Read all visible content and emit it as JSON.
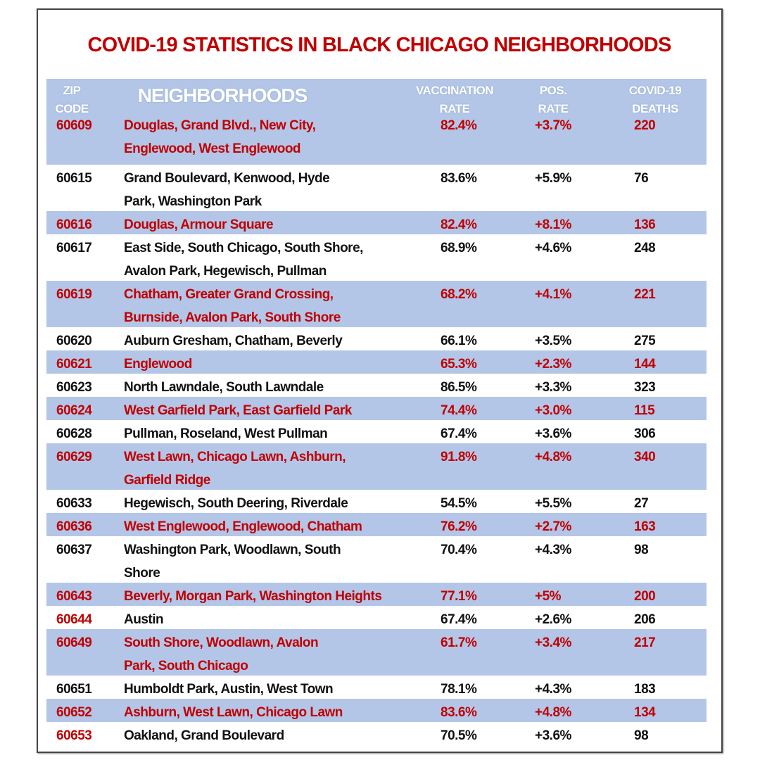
{
  "title": "COVID-19 STATISTICS IN BLACK CHICAGO NEIGHBORHOODS",
  "colors": {
    "title": "#c00000",
    "highlight": "#b4c6e7",
    "red_text": "#c00000"
  },
  "headers": {
    "zip": [
      "ZIP",
      "CODE"
    ],
    "neighborhoods": "NEIGHBORHOODS",
    "vaccination": [
      "VACCINATION",
      "RATE"
    ],
    "pos": [
      "POS.",
      "RATE"
    ],
    "deaths": [
      "COVID-19",
      "DEATHS"
    ]
  },
  "rows": [
    {
      "zip": "60609",
      "lines": [
        "Douglas, Grand Blvd., New City,",
        "Englewood, West Englewood"
      ],
      "vac": "82.4%",
      "pos": "+3.7%",
      "deaths": "220",
      "hl": true,
      "zip_red": true
    },
    {
      "zip": "60615",
      "lines": [
        "Grand Boulevard, Kenwood, Hyde",
        "Park, Washington Park"
      ],
      "vac": "83.6%",
      "pos": "+5.9%",
      "deaths": "76",
      "hl": false,
      "zip_red": false
    },
    {
      "zip": "60616",
      "lines": [
        "Douglas, Armour Square"
      ],
      "vac": "82.4%",
      "pos": "+8.1%",
      "deaths": "136",
      "hl": true,
      "zip_red": true
    },
    {
      "zip": "60617",
      "lines": [
        "East Side, South Chicago, South Shore,",
        "Avalon Park, Hegewisch, Pullman"
      ],
      "vac": "68.9%",
      "pos": "+4.6%",
      "deaths": "248",
      "hl": false,
      "zip_red": false
    },
    {
      "zip": "60619",
      "lines": [
        "Chatham, Greater Grand Crossing,",
        "Burnside, Avalon Park, South Shore"
      ],
      "vac": "68.2%",
      "pos": "+4.1%",
      "deaths": "221",
      "hl": true,
      "zip_red": true
    },
    {
      "zip": "60620",
      "lines": [
        "Auburn Gresham, Chatham, Beverly"
      ],
      "vac": "66.1%",
      "pos": "+3.5%",
      "deaths": "275",
      "hl": false,
      "zip_red": false
    },
    {
      "zip": "60621",
      "lines": [
        "Englewood"
      ],
      "vac": "65.3%",
      "pos": "+2.3%",
      "deaths": "144",
      "hl": true,
      "zip_red": true
    },
    {
      "zip": "60623",
      "lines": [
        "North Lawndale, South Lawndale"
      ],
      "vac": "86.5%",
      "pos": "+3.3%",
      "deaths": "323",
      "hl": false,
      "zip_red": false
    },
    {
      "zip": "60624",
      "lines": [
        "West Garfield Park, East Garfield Park"
      ],
      "vac": "74.4%",
      "pos": "+3.0%",
      "deaths": "115",
      "hl": true,
      "zip_red": true
    },
    {
      "zip": "60628",
      "lines": [
        "Pullman, Roseland, West Pullman"
      ],
      "vac": "67.4%",
      "pos": "+3.6%",
      "deaths": "306",
      "hl": false,
      "zip_red": false
    },
    {
      "zip": "60629",
      "lines": [
        "West Lawn, Chicago Lawn, Ashburn,",
        "Garfield Ridge"
      ],
      "vac": "91.8%",
      "pos": "+4.8%",
      "deaths": "340",
      "hl": true,
      "zip_red": true
    },
    {
      "zip": "60633",
      "lines": [
        "Hegewisch, South Deering, Riverdale"
      ],
      "vac": "54.5%",
      "pos": "+5.5%",
      "deaths": "27",
      "hl": false,
      "zip_red": false
    },
    {
      "zip": "60636",
      "lines": [
        "West Englewood, Englewood, Chatham"
      ],
      "vac": "76.2%",
      "pos": "+2.7%",
      "deaths": "163",
      "hl": true,
      "zip_red": true
    },
    {
      "zip": "60637",
      "lines": [
        "Washington Park, Woodlawn, South",
        "Shore"
      ],
      "vac": "70.4%",
      "pos": "+4.3%",
      "deaths": "98",
      "hl": false,
      "zip_red": false
    },
    {
      "zip": "60643",
      "lines": [
        "Beverly, Morgan Park, Washington Heights"
      ],
      "vac": "77.1%",
      "pos": "+5%",
      "deaths": "200",
      "hl": true,
      "zip_red": true
    },
    {
      "zip": "60644",
      "lines": [
        "Austin"
      ],
      "vac": "67.4%",
      "pos": "+2.6%",
      "deaths": "206",
      "hl": false,
      "zip_red": true
    },
    {
      "zip": "60649",
      "lines": [
        "South Shore, Woodlawn, Avalon",
        "Park, South Chicago"
      ],
      "vac": "61.7%",
      "pos": "+3.4%",
      "deaths": "217",
      "hl": true,
      "zip_red": true
    },
    {
      "zip": "60651",
      "lines": [
        "Humboldt Park, Austin, West Town"
      ],
      "vac": "78.1%",
      "pos": "+4.3%",
      "deaths": "183",
      "hl": false,
      "zip_red": false
    },
    {
      "zip": "60652",
      "lines": [
        "Ashburn, West Lawn, Chicago Lawn"
      ],
      "vac": "83.6%",
      "pos": "+4.8%",
      "deaths": "134",
      "hl": true,
      "zip_red": true
    },
    {
      "zip": "60653",
      "lines": [
        "Oakland, Grand Boulevard"
      ],
      "vac": "70.5%",
      "pos": "+3.6%",
      "deaths": "98",
      "hl": false,
      "zip_red": true
    }
  ]
}
